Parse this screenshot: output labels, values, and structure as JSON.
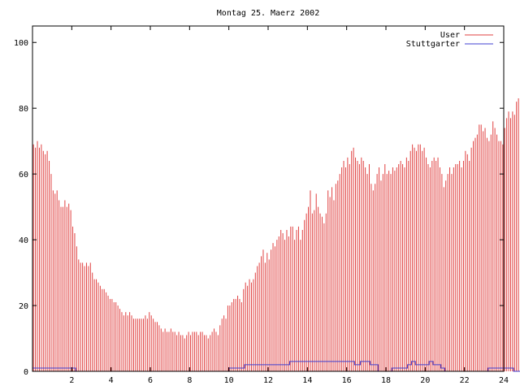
{
  "chart_data": {
    "type": "bar",
    "title": "Montag 25. Maerz 2002",
    "xlabel": "",
    "ylabel": "",
    "xlim": [
      0,
      24
    ],
    "ylim": [
      0,
      105
    ],
    "x_ticks": [
      2,
      4,
      6,
      8,
      10,
      12,
      14,
      16,
      18,
      20,
      22,
      24
    ],
    "y_ticks": [
      0,
      20,
      40,
      60,
      80,
      100
    ],
    "grid": false,
    "legend_position": "top-right",
    "series": [
      {
        "name": "User",
        "style": "impulses",
        "color": "#e04040",
        "x_start": 0,
        "x_step": 0.1,
        "values": [
          69,
          68,
          70,
          68,
          69,
          67,
          66,
          67,
          64,
          60,
          55,
          54,
          55,
          52,
          50,
          50,
          52,
          50,
          51,
          49,
          44,
          42,
          38,
          34,
          33,
          33,
          32,
          33,
          32,
          33,
          30,
          28,
          28,
          27,
          26,
          25,
          25,
          24,
          23,
          22,
          22,
          21,
          21,
          20,
          19,
          18,
          17,
          18,
          17,
          18,
          17,
          16,
          16,
          16,
          16,
          16,
          16,
          17,
          16,
          18,
          17,
          16,
          15,
          15,
          14,
          13,
          12,
          13,
          12,
          12,
          13,
          12,
          12,
          11,
          12,
          11,
          11,
          10,
          11,
          12,
          11,
          12,
          12,
          12,
          11,
          12,
          12,
          11,
          11,
          10,
          11,
          12,
          13,
          12,
          11,
          14,
          16,
          17,
          16,
          20,
          20,
          21,
          22,
          22,
          23,
          22,
          21,
          25,
          27,
          26,
          28,
          27,
          28,
          30,
          32,
          33,
          35,
          37,
          33,
          36,
          34,
          37,
          39,
          38,
          40,
          41,
          43,
          42,
          40,
          43,
          41,
          44,
          44,
          40,
          43,
          44,
          40,
          43,
          46,
          48,
          50,
          55,
          48,
          49,
          54,
          50,
          48,
          47,
          45,
          48,
          55,
          53,
          56,
          52,
          57,
          58,
          60,
          62,
          64,
          62,
          65,
          63,
          67,
          68,
          65,
          64,
          63,
          65,
          64,
          62,
          60,
          63,
          57,
          55,
          57,
          60,
          62,
          58,
          60,
          63,
          60,
          61,
          60,
          62,
          61,
          62,
          63,
          64,
          63,
          62,
          65,
          64,
          67,
          69,
          68,
          67,
          69,
          69,
          67,
          68,
          65,
          63,
          62,
          64,
          65,
          64,
          65,
          62,
          60,
          56,
          58,
          60,
          62,
          60,
          62,
          63,
          63,
          64,
          62,
          64,
          67,
          66,
          64,
          68,
          70,
          71,
          72,
          75,
          75,
          73,
          74,
          71,
          70,
          72,
          76,
          74,
          72,
          70,
          70,
          69,
          74,
          77,
          79,
          77,
          79,
          78,
          82,
          83
        ]
      },
      {
        "name": "Stuttgarter",
        "style": "line",
        "color": "#4040d0",
        "x_start": 0,
        "x_step": 0.1,
        "values": [
          1,
          1,
          1,
          1,
          1,
          1,
          1,
          1,
          1,
          1,
          1,
          1,
          1,
          1,
          1,
          1,
          1,
          1,
          1,
          1,
          1,
          1,
          0,
          0,
          0,
          0,
          0,
          0,
          0,
          0,
          0,
          0,
          0,
          0,
          0,
          0,
          0,
          0,
          0,
          0,
          0,
          0,
          0,
          0,
          0,
          0,
          0,
          0,
          0,
          0,
          0,
          0,
          0,
          0,
          0,
          0,
          0,
          0,
          0,
          0,
          0,
          0,
          0,
          0,
          0,
          0,
          0,
          0,
          0,
          0,
          0,
          0,
          0,
          0,
          0,
          0,
          0,
          0,
          0,
          0,
          0,
          0,
          0,
          0,
          0,
          0,
          0,
          0,
          0,
          0,
          0,
          0,
          0,
          0,
          0,
          0,
          0,
          0,
          0,
          0,
          1,
          1,
          1,
          1,
          1,
          1,
          1,
          1,
          2,
          2,
          2,
          2,
          2,
          2,
          2,
          2,
          2,
          2,
          2,
          2,
          2,
          2,
          2,
          2,
          2,
          2,
          2,
          2,
          2,
          2,
          2,
          3,
          3,
          3,
          3,
          3,
          3,
          3,
          3,
          3,
          3,
          3,
          3,
          3,
          3,
          3,
          3,
          3,
          3,
          3,
          3,
          3,
          3,
          3,
          3,
          3,
          3,
          3,
          3,
          3,
          3,
          3,
          3,
          3,
          2,
          2,
          2,
          3,
          3,
          3,
          3,
          3,
          2,
          2,
          2,
          2,
          0,
          0,
          0,
          0,
          0,
          0,
          0,
          1,
          1,
          1,
          1,
          1,
          1,
          1,
          1,
          2,
          2,
          3,
          3,
          2,
          2,
          2,
          2,
          2,
          2,
          2,
          3,
          3,
          2,
          2,
          2,
          2,
          1,
          1,
          0,
          0,
          0,
          0,
          0,
          0,
          0,
          0,
          0,
          0,
          0,
          0,
          0,
          0,
          0,
          0,
          0,
          0,
          0,
          0,
          0,
          0,
          1,
          1,
          1,
          1,
          1,
          1,
          1,
          1,
          1,
          1,
          1,
          1,
          1,
          0,
          0,
          0,
          0,
          0,
          0,
          0,
          0,
          0,
          0,
          0,
          0,
          0,
          0,
          0,
          0,
          0,
          0,
          1,
          1,
          1,
          1
        ]
      }
    ]
  }
}
